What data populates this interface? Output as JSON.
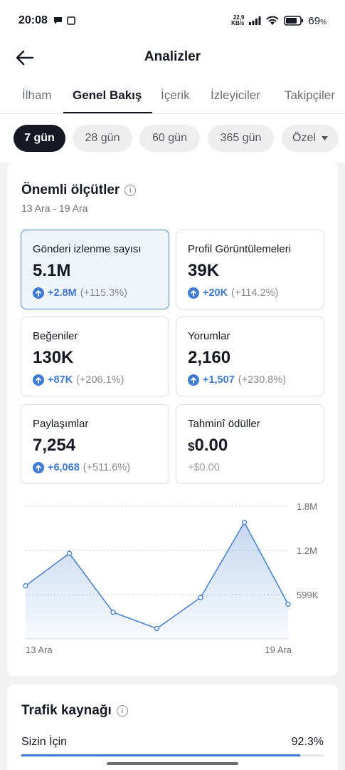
{
  "status": {
    "time": "20:08",
    "net_speed_top": "22,9",
    "net_speed_bottom": "KB/s",
    "battery": "69",
    "battery_unit": "%"
  },
  "header": {
    "title": "Analizler"
  },
  "tabs": [
    {
      "label": "İlham"
    },
    {
      "label": "Genel Bakış"
    },
    {
      "label": "İçerik"
    },
    {
      "label": "İzleyiciler"
    },
    {
      "label": "Takipçiler"
    }
  ],
  "active_tab": 1,
  "filters": [
    {
      "label": "7 gün"
    },
    {
      "label": "28 gün"
    },
    {
      "label": "60 gün"
    },
    {
      "label": "365 gün"
    },
    {
      "label": "Özel"
    }
  ],
  "key_metrics": {
    "title": "Önemli ölçütler",
    "date_range": "13 Ara - 19 Ara",
    "items": [
      {
        "label": "Gönderi izlenme sayısı",
        "value": "5.1M",
        "delta": "+2.8M",
        "pct": "(+115.3%)"
      },
      {
        "label": "Profil Görüntülemeleri",
        "value": "39K",
        "delta": "+20K",
        "pct": "(+114.2%)"
      },
      {
        "label": "Beğeniler",
        "value": "130K",
        "delta": "+87K",
        "pct": "(+206.1%)"
      },
      {
        "label": "Yorumlar",
        "value": "2,160",
        "delta": "+1,507",
        "pct": "(+230.8%)"
      },
      {
        "label": "Paylaşımlar",
        "value": "7,254",
        "delta": "+6,068",
        "pct": "(+511.6%)"
      },
      {
        "label": "Tahminî ödüller",
        "currency": "$",
        "value": "0.00",
        "delta": "+$0.00"
      }
    ]
  },
  "chart_data": {
    "type": "area",
    "x": [
      "13 Ara",
      "14 Ara",
      "15 Ara",
      "16 Ara",
      "17 Ara",
      "18 Ara",
      "19 Ara"
    ],
    "y": [
      720000,
      1160000,
      360000,
      140000,
      560000,
      1580000,
      470000
    ],
    "xtick_labels": [
      "13 Ara",
      "19 Ara"
    ],
    "ytick_labels": [
      "1.8M",
      "1.2M",
      "599K"
    ],
    "ytick_values": [
      1800000,
      1200000,
      599000
    ],
    "ylim": [
      0,
      1800000
    ],
    "grid": true,
    "color": "#4a84d0"
  },
  "traffic": {
    "title": "Trafik kaynağı",
    "rows": [
      {
        "label": "Sizin İçin",
        "value": "92.3%",
        "fraction": 0.923
      }
    ]
  }
}
